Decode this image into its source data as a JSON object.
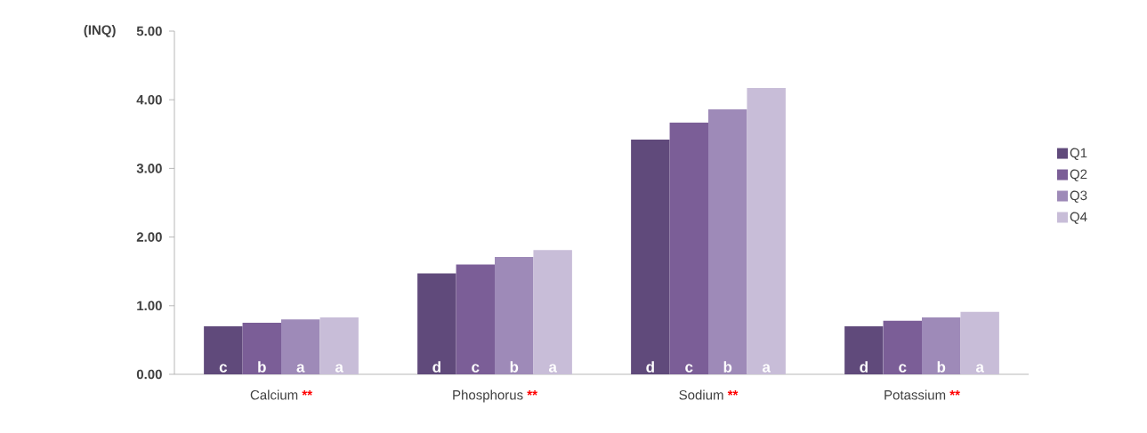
{
  "chart_data": {
    "type": "bar",
    "ylabel": "(INQ)",
    "categories": [
      "Calcium",
      "Phosphorus",
      "Sodium",
      "Potassium"
    ],
    "series": [
      {
        "name": "Q1",
        "color": "#604a7b",
        "values": [
          0.7,
          1.47,
          3.42,
          0.7
        ],
        "value_labels": [
          "c",
          "d",
          "d",
          "d"
        ]
      },
      {
        "name": "Q2",
        "color": "#7b5e97",
        "values": [
          0.75,
          1.6,
          3.67,
          0.78
        ],
        "value_labels": [
          "b",
          "c",
          "c",
          "c"
        ]
      },
      {
        "name": "Q3",
        "color": "#9e8ab8",
        "values": [
          0.8,
          1.71,
          3.86,
          0.83
        ],
        "value_labels": [
          "a",
          "b",
          "b",
          "b"
        ]
      },
      {
        "name": "Q4",
        "color": "#c8bdd8",
        "values": [
          0.83,
          1.81,
          4.17,
          0.91
        ],
        "value_labels": [
          "a",
          "a",
          "a",
          "a"
        ]
      }
    ],
    "annotations": [
      "**",
      "**",
      "**",
      "**"
    ],
    "ylim": [
      0,
      5
    ],
    "yticks": [
      {
        "value": 0,
        "label": "0.00"
      },
      {
        "value": 1,
        "label": "1.00"
      },
      {
        "value": 2,
        "label": "2.00"
      },
      {
        "value": 3,
        "label": "3.00"
      },
      {
        "value": 4,
        "label": "4.00"
      },
      {
        "value": 5,
        "label": "5.00"
      }
    ],
    "grid": false,
    "legend": "right"
  }
}
